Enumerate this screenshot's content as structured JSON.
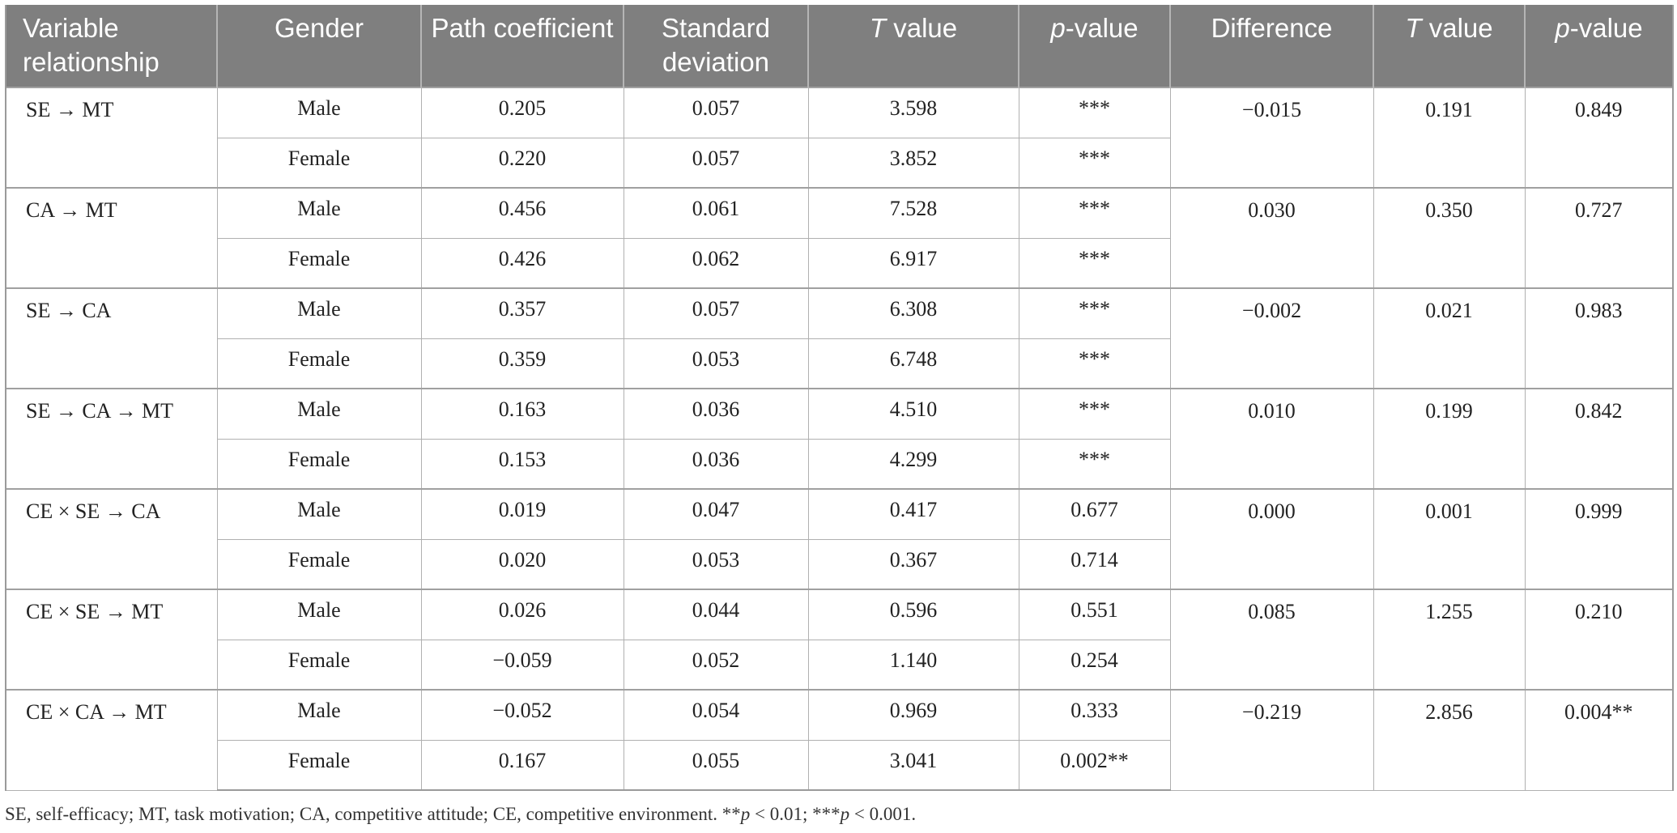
{
  "table": {
    "headers": [
      "Variable relationship",
      "Gender",
      "Path coefficient",
      "Standard deviation",
      "T value",
      "p-value",
      "Difference",
      "T value",
      "p-value"
    ],
    "groups": [
      {
        "relationship": "SE → MT",
        "difference": "−0.015",
        "t_value": "0.191",
        "p_value": "0.849",
        "rows": [
          {
            "gender": "Male",
            "path": "0.205",
            "sd": "0.057",
            "t": "3.598",
            "p": "***"
          },
          {
            "gender": "Female",
            "path": "0.220",
            "sd": "0.057",
            "t": "3.852",
            "p": "***"
          }
        ]
      },
      {
        "relationship": "CA → MT",
        "difference": "0.030",
        "t_value": "0.350",
        "p_value": "0.727",
        "rows": [
          {
            "gender": "Male",
            "path": "0.456",
            "sd": "0.061",
            "t": "7.528",
            "p": "***"
          },
          {
            "gender": "Female",
            "path": "0.426",
            "sd": "0.062",
            "t": "6.917",
            "p": "***"
          }
        ]
      },
      {
        "relationship": "SE → CA",
        "difference": "−0.002",
        "t_value": "0.021",
        "p_value": "0.983",
        "rows": [
          {
            "gender": "Male",
            "path": "0.357",
            "sd": "0.057",
            "t": "6.308",
            "p": "***"
          },
          {
            "gender": "Female",
            "path": "0.359",
            "sd": "0.053",
            "t": "6.748",
            "p": "***"
          }
        ]
      },
      {
        "relationship": "SE → CA → MT",
        "difference": "0.010",
        "t_value": "0.199",
        "p_value": "0.842",
        "rows": [
          {
            "gender": "Male",
            "path": "0.163",
            "sd": "0.036",
            "t": "4.510",
            "p": "***"
          },
          {
            "gender": "Female",
            "path": "0.153",
            "sd": "0.036",
            "t": "4.299",
            "p": "***"
          }
        ]
      },
      {
        "relationship": "CE × SE → CA",
        "difference": "0.000",
        "t_value": "0.001",
        "p_value": "0.999",
        "rows": [
          {
            "gender": "Male",
            "path": "0.019",
            "sd": "0.047",
            "t": "0.417",
            "p": "0.677"
          },
          {
            "gender": "Female",
            "path": "0.020",
            "sd": "0.053",
            "t": "0.367",
            "p": "0.714"
          }
        ]
      },
      {
        "relationship": "CE × SE → MT",
        "difference": "0.085",
        "t_value": "1.255",
        "p_value": "0.210",
        "rows": [
          {
            "gender": "Male",
            "path": "0.026",
            "sd": "0.044",
            "t": "0.596",
            "p": "0.551"
          },
          {
            "gender": "Female",
            "path": "−0.059",
            "sd": "0.052",
            "t": "1.140",
            "p": "0.254"
          }
        ]
      },
      {
        "relationship": "CE × CA → MT",
        "difference": "−0.219",
        "t_value": "2.856",
        "p_value": "0.004**",
        "rows": [
          {
            "gender": "Male",
            "path": "−0.052",
            "sd": "0.054",
            "t": "0.969",
            "p": "0.333"
          },
          {
            "gender": "Female",
            "path": "0.167",
            "sd": "0.055",
            "t": "3.041",
            "p": "0.002**"
          }
        ]
      }
    ]
  },
  "footnote": "SE, self-efficacy; MT, task motivation; CA, competitive attitude; CE, competitive environment. **p < 0.01; ***p < 0.001.",
  "colors": {
    "header_bg": "#7f7f7f",
    "header_text": "#ffffff",
    "grid": "#b0b0b0"
  }
}
